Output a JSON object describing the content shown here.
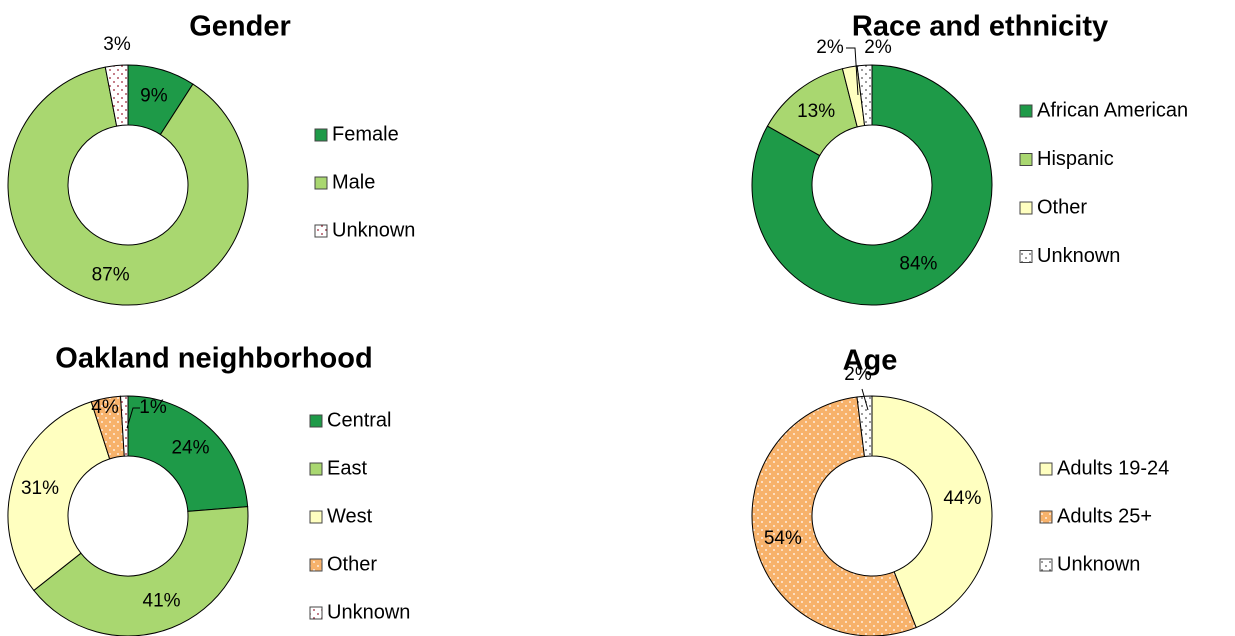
{
  "chart_data": [
    {
      "type": "donut",
      "title": "Gender",
      "categories": [
        "Female",
        "Male",
        "Unknown"
      ],
      "values": [
        9,
        87,
        3
      ],
      "value_labels": [
        "9%",
        "87%",
        "3%"
      ],
      "colors": [
        "#1e9a48",
        "#a9d770",
        "#ffffff"
      ],
      "dots": [
        null,
        null,
        "#9b2335"
      ]
    },
    {
      "type": "donut",
      "title": "Race and ethnicity",
      "categories": [
        "African American",
        "Hispanic",
        "Other",
        "Unknown"
      ],
      "values": [
        84,
        13,
        2,
        2
      ],
      "value_labels": [
        "84%",
        "13%",
        "2%",
        "2%"
      ],
      "colors": [
        "#1e9a48",
        "#a9d770",
        "#ffffc0",
        "#ffffff"
      ],
      "dots": [
        null,
        null,
        null,
        "#555555"
      ]
    },
    {
      "type": "donut",
      "title": "Oakland neighborhood",
      "categories": [
        "Central",
        "East",
        "West",
        "Other",
        "Unknown"
      ],
      "values": [
        24,
        41,
        31,
        4,
        1
      ],
      "value_labels": [
        "24%",
        "41%",
        "31%",
        "4%",
        "1%"
      ],
      "colors": [
        "#1e9a48",
        "#a9d770",
        "#ffffc0",
        "#f7b26b",
        "#ffffff"
      ],
      "dots": [
        null,
        null,
        null,
        "#ffffff",
        "#9b2335"
      ]
    },
    {
      "type": "donut",
      "title": "Age",
      "categories": [
        "Adults 19-24",
        "Adults 25+",
        "Unknown"
      ],
      "values": [
        44,
        54,
        2
      ],
      "value_labels": [
        "44%",
        "54%",
        "2%"
      ],
      "colors": [
        "#ffffc0",
        "#f7b26b",
        "#ffffff"
      ],
      "dots": [
        null,
        "#ffffff",
        "#555555"
      ]
    }
  ]
}
